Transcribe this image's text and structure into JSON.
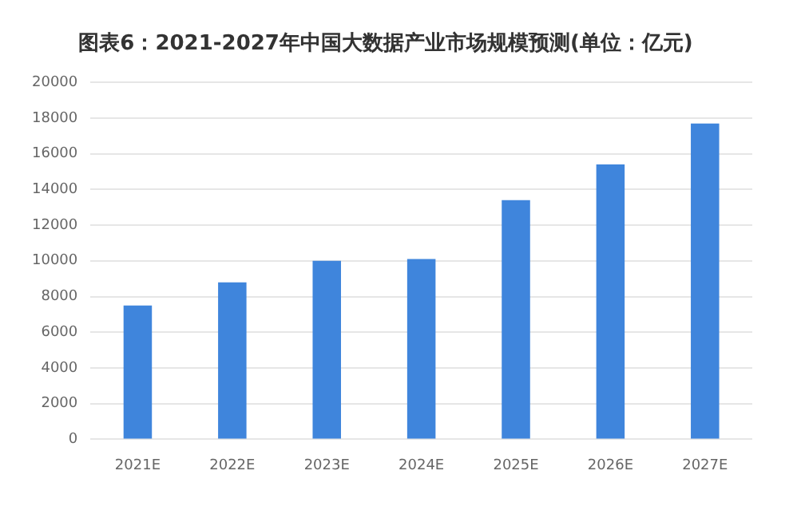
{
  "chart_data": {
    "type": "bar",
    "title": "图表6：2021-2027年中国大数据产业市场规模预测(单位：亿元)",
    "categories": [
      "2021E",
      "2022E",
      "2023E",
      "2024E",
      "2025E",
      "2026E",
      "2027E"
    ],
    "values": [
      7500,
      8800,
      10000,
      10100,
      13400,
      15400,
      17700
    ],
    "color": "#3f85dc",
    "ylim": [
      0,
      20000
    ],
    "yticks": [
      0,
      2000,
      4000,
      6000,
      8000,
      10000,
      12000,
      14000,
      16000,
      18000,
      20000
    ],
    "grid": "y",
    "legend": false
  }
}
